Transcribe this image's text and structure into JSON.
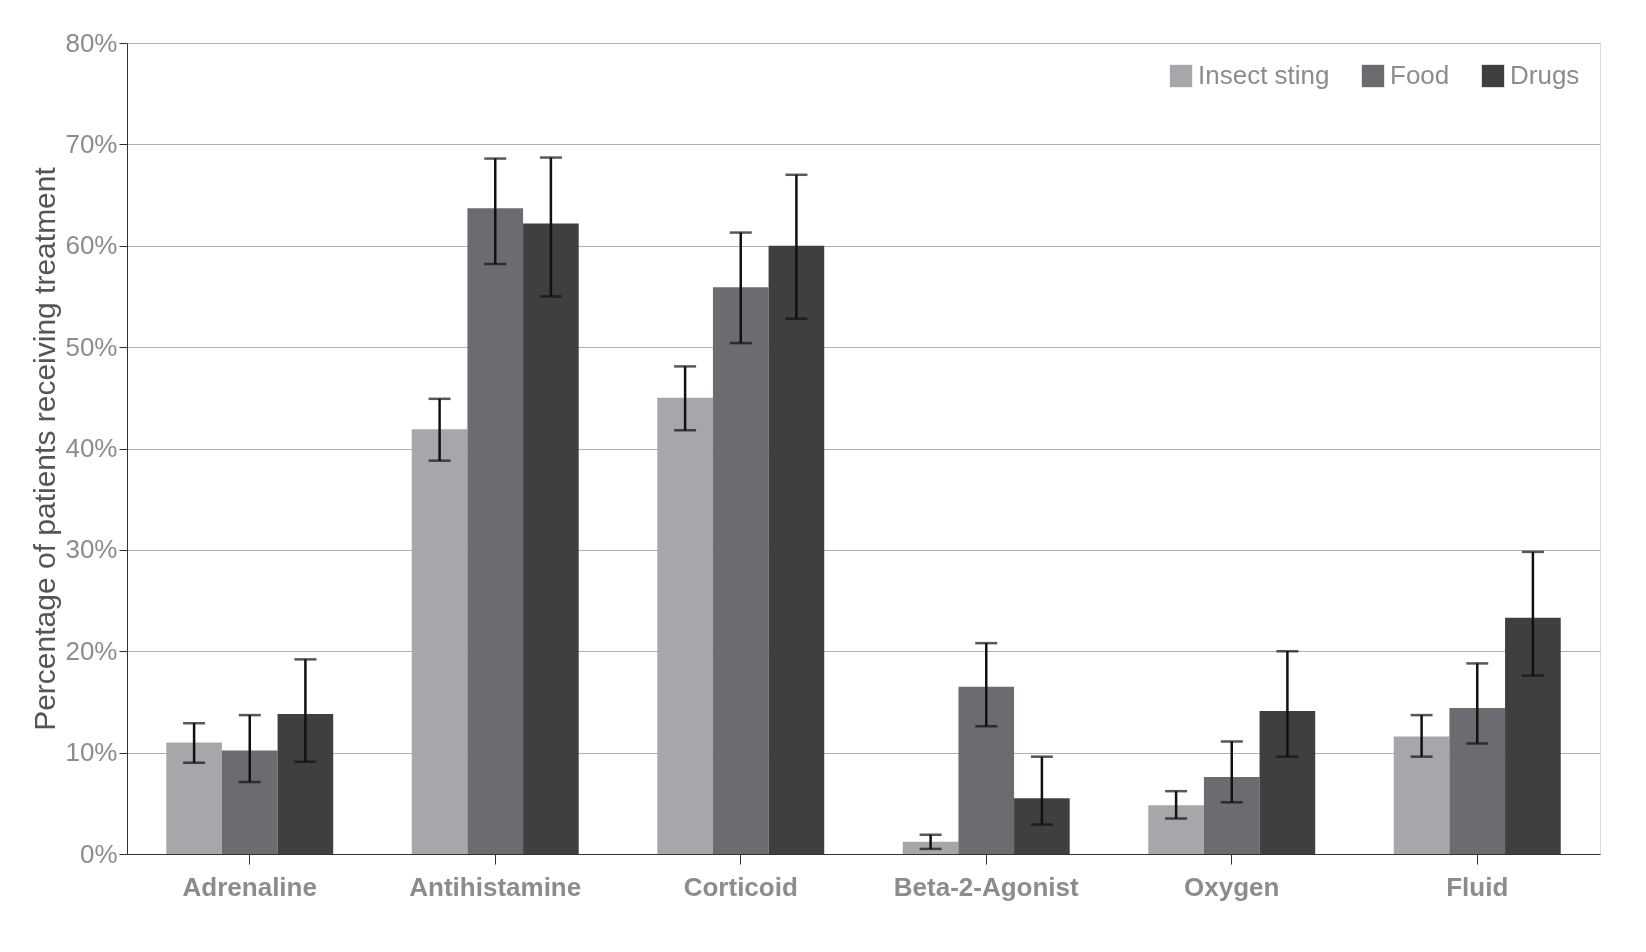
{
  "chart_data": {
    "type": "bar",
    "ylabel": "Percentage of patients receiving treatment",
    "categories": [
      "Adrenaline",
      "Antihistamine",
      "Corticoid",
      "Beta-2-Agonist",
      "Oxygen",
      "Fluid"
    ],
    "series": [
      {
        "name": "Insect sting",
        "color": "#a6a7aa",
        "values": [
          11.0,
          41.9,
          45.0,
          1.2,
          4.8,
          11.6
        ],
        "errors": [
          [
            9.0,
            12.9
          ],
          [
            38.8,
            44.9
          ],
          [
            41.8,
            48.1
          ],
          [
            0.5,
            1.9
          ],
          [
            3.5,
            6.2
          ],
          [
            9.6,
            13.7
          ]
        ]
      },
      {
        "name": "Food",
        "color": "#6b6c70",
        "values": [
          10.2,
          63.7,
          55.9,
          16.5,
          7.6,
          14.4
        ],
        "errors": [
          [
            7.1,
            13.7
          ],
          [
            58.2,
            68.6
          ],
          [
            50.4,
            61.3
          ],
          [
            12.6,
            20.8
          ],
          [
            5.1,
            11.1
          ],
          [
            10.9,
            18.8
          ]
        ]
      },
      {
        "name": "Drugs",
        "color": "#3f3f40",
        "values": [
          13.8,
          62.2,
          60.0,
          5.5,
          14.1,
          23.3
        ],
        "errors": [
          [
            9.1,
            19.2
          ],
          [
            55.0,
            68.7
          ],
          [
            52.8,
            67.0
          ],
          [
            2.9,
            9.6
          ],
          [
            9.6,
            20.0
          ],
          [
            17.6,
            29.8
          ]
        ]
      }
    ],
    "ylim": [
      0,
      80
    ],
    "yticks": [
      {
        "value": 0,
        "label": "0%"
      },
      {
        "value": 10,
        "label": "10%"
      },
      {
        "value": 20,
        "label": "20%"
      },
      {
        "value": 30,
        "label": "30%"
      },
      {
        "value": 40,
        "label": "40%"
      },
      {
        "value": 50,
        "label": "50%"
      },
      {
        "value": 60,
        "label": "60%"
      },
      {
        "value": 70,
        "label": "70%"
      },
      {
        "value": 80,
        "label": "80%"
      }
    ],
    "grid": "y",
    "legend": "top right"
  }
}
